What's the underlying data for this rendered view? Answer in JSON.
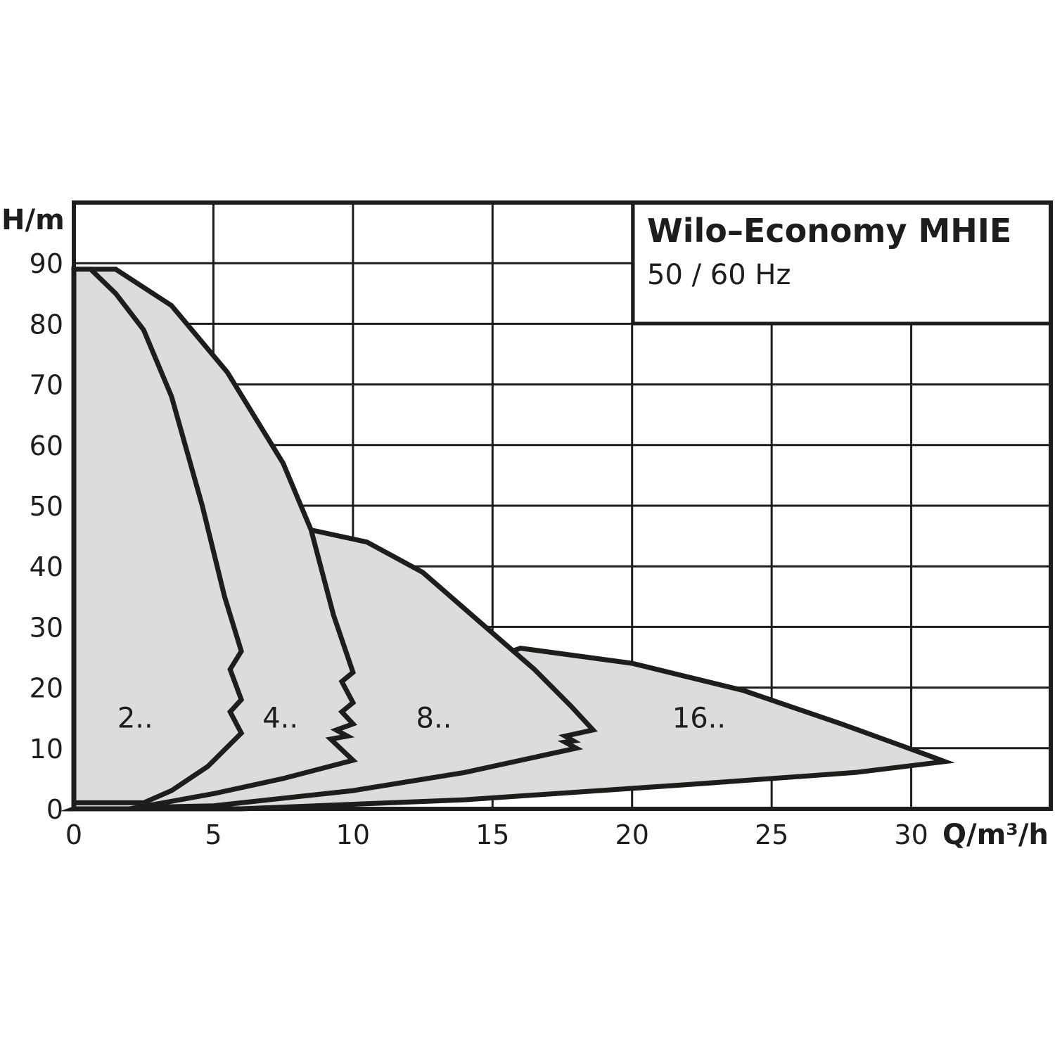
{
  "chart_data": {
    "type": "area",
    "title": "Wilo–Economy MHIE",
    "subtitle": "50 / 60 Hz",
    "xlabel": "Q/m³/h",
    "ylabel": "H/m",
    "xlim": [
      0,
      35
    ],
    "ylim": [
      0,
      100
    ],
    "x_ticks": [
      0,
      5,
      10,
      15,
      20,
      25,
      30
    ],
    "y_ticks": [
      0,
      10,
      20,
      30,
      40,
      50,
      60,
      70,
      80,
      90
    ],
    "grid": true,
    "colors": {
      "fill": "#dcdcdc",
      "stroke": "#1d1d1b",
      "grid": "#1d1d1b",
      "background": "#ffffff"
    },
    "series": [
      {
        "name": "2..",
        "label_at": [
          2.2,
          15
        ],
        "points": [
          [
            0,
            1
          ],
          [
            0,
            89
          ],
          [
            0.6,
            89
          ],
          [
            1.5,
            85
          ],
          [
            2.5,
            79
          ],
          [
            3.5,
            68
          ],
          [
            4.6,
            50
          ],
          [
            5.4,
            35
          ],
          [
            6.0,
            26
          ],
          [
            5.6,
            23
          ],
          [
            6.0,
            18
          ],
          [
            5.6,
            16
          ],
          [
            6.0,
            12.5
          ],
          [
            4.8,
            7
          ],
          [
            3.5,
            3
          ],
          [
            2.5,
            1
          ],
          [
            0,
            1
          ]
        ]
      },
      {
        "name": "4..",
        "label_at": [
          7.4,
          15
        ],
        "points": [
          [
            0,
            89
          ],
          [
            1.5,
            89
          ],
          [
            3.5,
            83
          ],
          [
            5.5,
            72
          ],
          [
            7.5,
            57
          ],
          [
            8.5,
            46
          ],
          [
            9.3,
            32
          ],
          [
            10.0,
            22.5
          ],
          [
            9.6,
            21
          ],
          [
            10.0,
            17.5
          ],
          [
            9.6,
            16
          ],
          [
            10.0,
            14
          ],
          [
            9.4,
            13
          ],
          [
            9.8,
            12
          ],
          [
            9.2,
            11.5
          ],
          [
            10.0,
            8
          ],
          [
            7.5,
            5
          ],
          [
            5,
            2.5
          ],
          [
            2,
            0
          ],
          [
            0,
            0
          ]
        ]
      },
      {
        "name": "8..",
        "label_at": [
          12.9,
          15
        ],
        "points": [
          [
            8.5,
            46
          ],
          [
            10.5,
            44
          ],
          [
            12.5,
            39
          ],
          [
            14.5,
            31
          ],
          [
            16.5,
            23
          ],
          [
            17.8,
            17
          ],
          [
            18.6,
            13
          ],
          [
            17.6,
            12
          ],
          [
            17.9,
            11.2
          ],
          [
            17.6,
            11
          ],
          [
            18,
            10
          ],
          [
            14,
            6
          ],
          [
            10,
            3
          ],
          [
            5,
            0.5
          ],
          [
            0,
            0
          ]
        ]
      },
      {
        "name": "16..",
        "label_at": [
          22.4,
          15
        ],
        "points": [
          [
            16,
            26.5
          ],
          [
            20,
            24
          ],
          [
            24,
            19.5
          ],
          [
            27.5,
            14
          ],
          [
            30.5,
            9
          ],
          [
            31.2,
            7.8
          ],
          [
            28,
            6
          ],
          [
            22,
            4
          ],
          [
            14,
            1.5
          ],
          [
            6,
            0
          ],
          [
            0,
            0
          ]
        ]
      }
    ]
  }
}
